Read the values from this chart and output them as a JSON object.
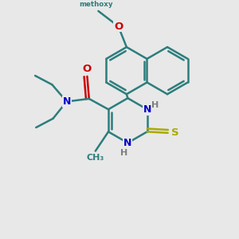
{
  "bg_color": "#e8e8e8",
  "bond_color": "#2d7d7d",
  "bond_width": 1.8,
  "atom_colors": {
    "C": "#2d7d7d",
    "N": "#0000cc",
    "O": "#cc0000",
    "S": "#aaaa00",
    "H": "#7d7d7d"
  },
  "xlim": [
    0,
    10
  ],
  "ylim": [
    0,
    10
  ]
}
